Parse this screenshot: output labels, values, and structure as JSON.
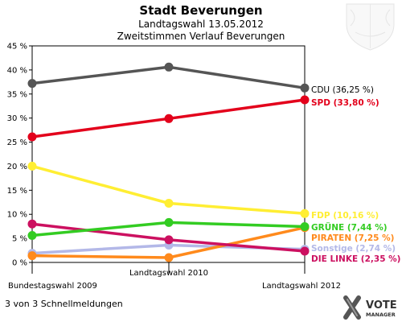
{
  "header": {
    "title": "Stadt Beverungen",
    "subtitle": "Landtagswahl 13.05.2012",
    "subtitle2": "Zweitstimmen Verlauf Beverungen"
  },
  "footer": {
    "note": "3 von 3 Schnellmeldungen"
  },
  "logo": {
    "line1": "VOTE",
    "line2": "MANAGER"
  },
  "colors": {
    "CDU": "#555555",
    "SPD": "#e3001b",
    "FDP": "#ffee33",
    "GRUENE": "#33cc22",
    "PIRATEN": "#ff8a1c",
    "Sonstige": "#b3b8e8",
    "LINKE": "#cc1060",
    "axis": "#000000",
    "grid": "#bbbbbb",
    "FDP_label": "#ffee33"
  },
  "chart_data": {
    "type": "line",
    "x": [
      "Bundestagswahl 2009",
      "Landtagswahl 2010",
      "Landtagswahl 2012"
    ],
    "yticks": [
      "0 %",
      "5 %",
      "10 %",
      "15 %",
      "20 %",
      "25 %",
      "30 %",
      "35 %",
      "40 %",
      "45 %"
    ],
    "ylim": [
      0,
      45
    ],
    "grid": false,
    "series": [
      {
        "name": "CDU",
        "values": [
          37.2,
          40.6,
          36.25
        ],
        "label": "CDU (36,25 %)"
      },
      {
        "name": "SPD",
        "values": [
          26.1,
          29.9,
          33.8
        ],
        "label": "SPD (33,80 %)"
      },
      {
        "name": "FDP",
        "values": [
          20.0,
          12.3,
          10.16
        ],
        "label": "FDP (10,16 %)"
      },
      {
        "name": "GRÜNE",
        "values": [
          5.6,
          8.3,
          7.44
        ],
        "label": "GRÜNE (7,44 %)"
      },
      {
        "name": "PIRATEN",
        "values": [
          1.4,
          1.0,
          7.25
        ],
        "label": "PIRATEN (7,25 %)"
      },
      {
        "name": "Sonstige",
        "values": [
          1.9,
          3.6,
          2.74
        ],
        "label": "Sonstige (2,74 %)"
      },
      {
        "name": "DIE LINKE",
        "values": [
          8.0,
          4.7,
          2.35
        ],
        "label": "DIE LINKE (2,35 %)"
      }
    ]
  }
}
